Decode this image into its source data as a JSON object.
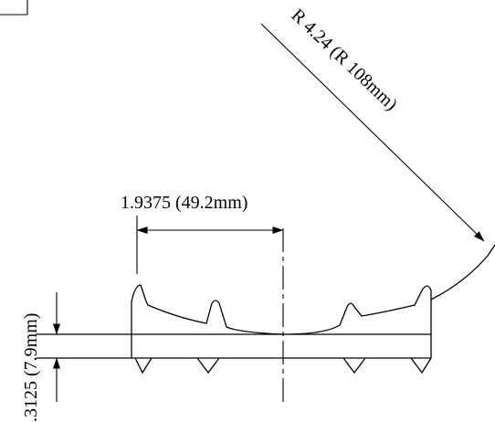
{
  "dimensions": {
    "radius_label": "R 4.24 (R 108mm)",
    "width_label": "1.9375 (49.2mm)",
    "height_label": ".3125 (7.9mm)"
  }
}
